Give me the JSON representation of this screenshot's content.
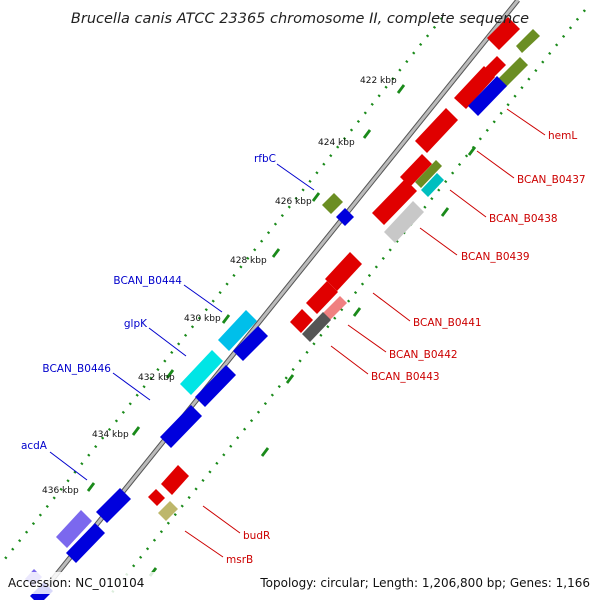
{
  "title": "Brucella canis ATCC 23365 chromosome II, complete sequence",
  "accession": "Accession: NC_010104",
  "topology": "Topology: circular; Length: 1,206,800 bp; Genes: 1,166",
  "ticks": [
    "422 kbp",
    "424 kbp",
    "426 kbp",
    "428 kbp",
    "430 kbp",
    "432 kbp",
    "434 kbp",
    "436 kbp"
  ],
  "labels_reverse": [
    "rfbC",
    "BCAN_B0444",
    "glpK",
    "BCAN_B0446",
    "acdA"
  ],
  "labels_forward": [
    "hemL",
    "BCAN_B0437",
    "BCAN_B0438",
    "BCAN_B0439",
    "BCAN_B0441",
    "BCAN_B0442",
    "BCAN_B0443",
    "budR",
    "msrB"
  ],
  "colors": {
    "forward_label": "#cc0000",
    "reverse_label": "#0000cc",
    "tick_dots": "#1a8a1a",
    "backbone": "#888888"
  }
}
